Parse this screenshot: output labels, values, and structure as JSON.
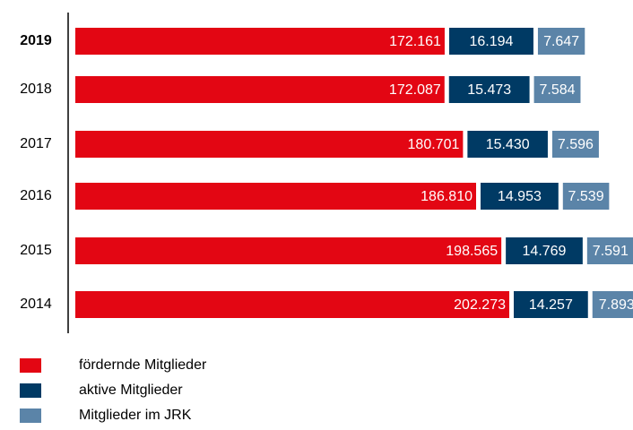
{
  "chart_data": {
    "type": "bar",
    "categories": [
      "2019",
      "2018",
      "2017",
      "2016",
      "2015",
      "2014"
    ],
    "series": [
      {
        "name": "fördernde Mitglieder",
        "color": "#e30613",
        "values": [
          172161,
          172087,
          180701,
          186810,
          198565,
          202273
        ],
        "value_labels": [
          "172.161",
          "172.087",
          "180.701",
          "186.810",
          "198.565",
          "202.273"
        ]
      },
      {
        "name": "aktive Mitglieder",
        "color": "#003a64",
        "values": [
          16194,
          15473,
          15430,
          14953,
          14769,
          14257
        ],
        "value_labels": [
          "16.194",
          "15.473",
          "15.430",
          "14.953",
          "14.769",
          "14.257"
        ]
      },
      {
        "name": "Mitglieder im JRK",
        "color": "#5b84a8",
        "values": [
          7647,
          7584,
          7596,
          7539,
          7591,
          7893
        ],
        "value_labels": [
          "7.647",
          "7.584",
          "7.596",
          "7.539",
          "7.591",
          "7.893"
        ]
      }
    ]
  }
}
